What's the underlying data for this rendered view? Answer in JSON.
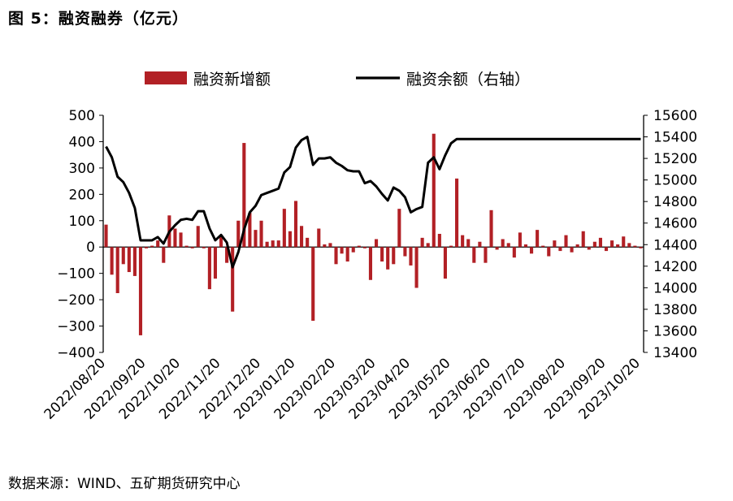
{
  "figure": {
    "title": "图 5：融资融券（亿元）",
    "source": "数据来源：WIND、五矿期货研究中心"
  },
  "colors": {
    "bar": "#b22025",
    "line": "#000000",
    "axis": "#000000"
  },
  "chart_data": {
    "type": "bar",
    "legend_position": "top-center",
    "grid": false,
    "y_left": {
      "min": -400,
      "max": 500,
      "ticks": [
        500,
        400,
        300,
        200,
        100,
        0,
        -100,
        -200,
        -300,
        -400
      ]
    },
    "y_right": {
      "min": 13400,
      "max": 15600,
      "ticks": [
        15600,
        15400,
        15200,
        15000,
        14800,
        14600,
        14400,
        14200,
        14000,
        13800,
        13600,
        13400
      ]
    },
    "x_tick_labels": [
      "2022/08/20",
      "2022/09/20",
      "2022/10/20",
      "2022/11/20",
      "2022/12/20",
      "2023/01/20",
      "2023/02/20",
      "2023/03/20",
      "2023/04/20",
      "2023/05/20",
      "2023/06/20",
      "2023/07/20",
      "2023/08/20",
      "2023/09/20",
      "2023/10/20"
    ],
    "x_tick_indices": [
      0,
      7,
      13,
      20,
      27,
      33,
      40,
      47,
      53,
      60,
      67,
      73,
      80,
      87,
      93
    ],
    "series": [
      {
        "name": "融资新增额",
        "type": "bar",
        "axis": "left",
        "values": [
          85,
          -105,
          -175,
          -65,
          -95,
          -110,
          -335,
          -5,
          5,
          25,
          -60,
          120,
          70,
          55,
          5,
          -5,
          80,
          -5,
          -160,
          -120,
          40,
          -60,
          -245,
          100,
          395,
          130,
          65,
          100,
          20,
          25,
          25,
          145,
          60,
          175,
          80,
          35,
          -280,
          70,
          10,
          15,
          -65,
          -25,
          -55,
          -20,
          5,
          -5,
          -125,
          30,
          -55,
          -85,
          -65,
          145,
          -35,
          -70,
          -155,
          35,
          15,
          430,
          50,
          -120,
          5,
          260,
          45,
          30,
          -60,
          20,
          -60,
          140,
          -10,
          30,
          15,
          -40,
          55,
          10,
          -25,
          65,
          5,
          -35,
          25,
          -15,
          45,
          -20,
          10,
          60,
          -10,
          20,
          35,
          -15,
          25,
          10,
          40,
          15,
          5,
          -5
        ]
      },
      {
        "name": "融资余额（右轴）",
        "type": "line",
        "axis": "right",
        "values": [
          15310,
          15210,
          15030,
          14980,
          14880,
          14740,
          14440,
          14440,
          14440,
          14470,
          14410,
          14520,
          14580,
          14630,
          14640,
          14630,
          14710,
          14710,
          14550,
          14440,
          14490,
          14420,
          14190,
          14330,
          14540,
          14700,
          14760,
          14860,
          14880,
          14900,
          14920,
          15070,
          15120,
          15300,
          15370,
          15400,
          15140,
          15200,
          15200,
          15210,
          15160,
          15130,
          15090,
          15080,
          15080,
          14970,
          14990,
          14940,
          14870,
          14810,
          14930,
          14900,
          14840,
          14700,
          14730,
          14750,
          15160,
          15210,
          15100,
          15230,
          15340,
          15380,
          15380,
          15380,
          15380,
          15380,
          15380,
          15380,
          15380,
          15380,
          15380,
          15380,
          15380,
          15380,
          15380,
          15380,
          15380,
          15380,
          15380,
          15380,
          15380,
          15380,
          15380,
          15380,
          15380,
          15380,
          15380,
          15380,
          15380,
          15380,
          15380,
          15380,
          15380,
          15380
        ]
      }
    ]
  }
}
